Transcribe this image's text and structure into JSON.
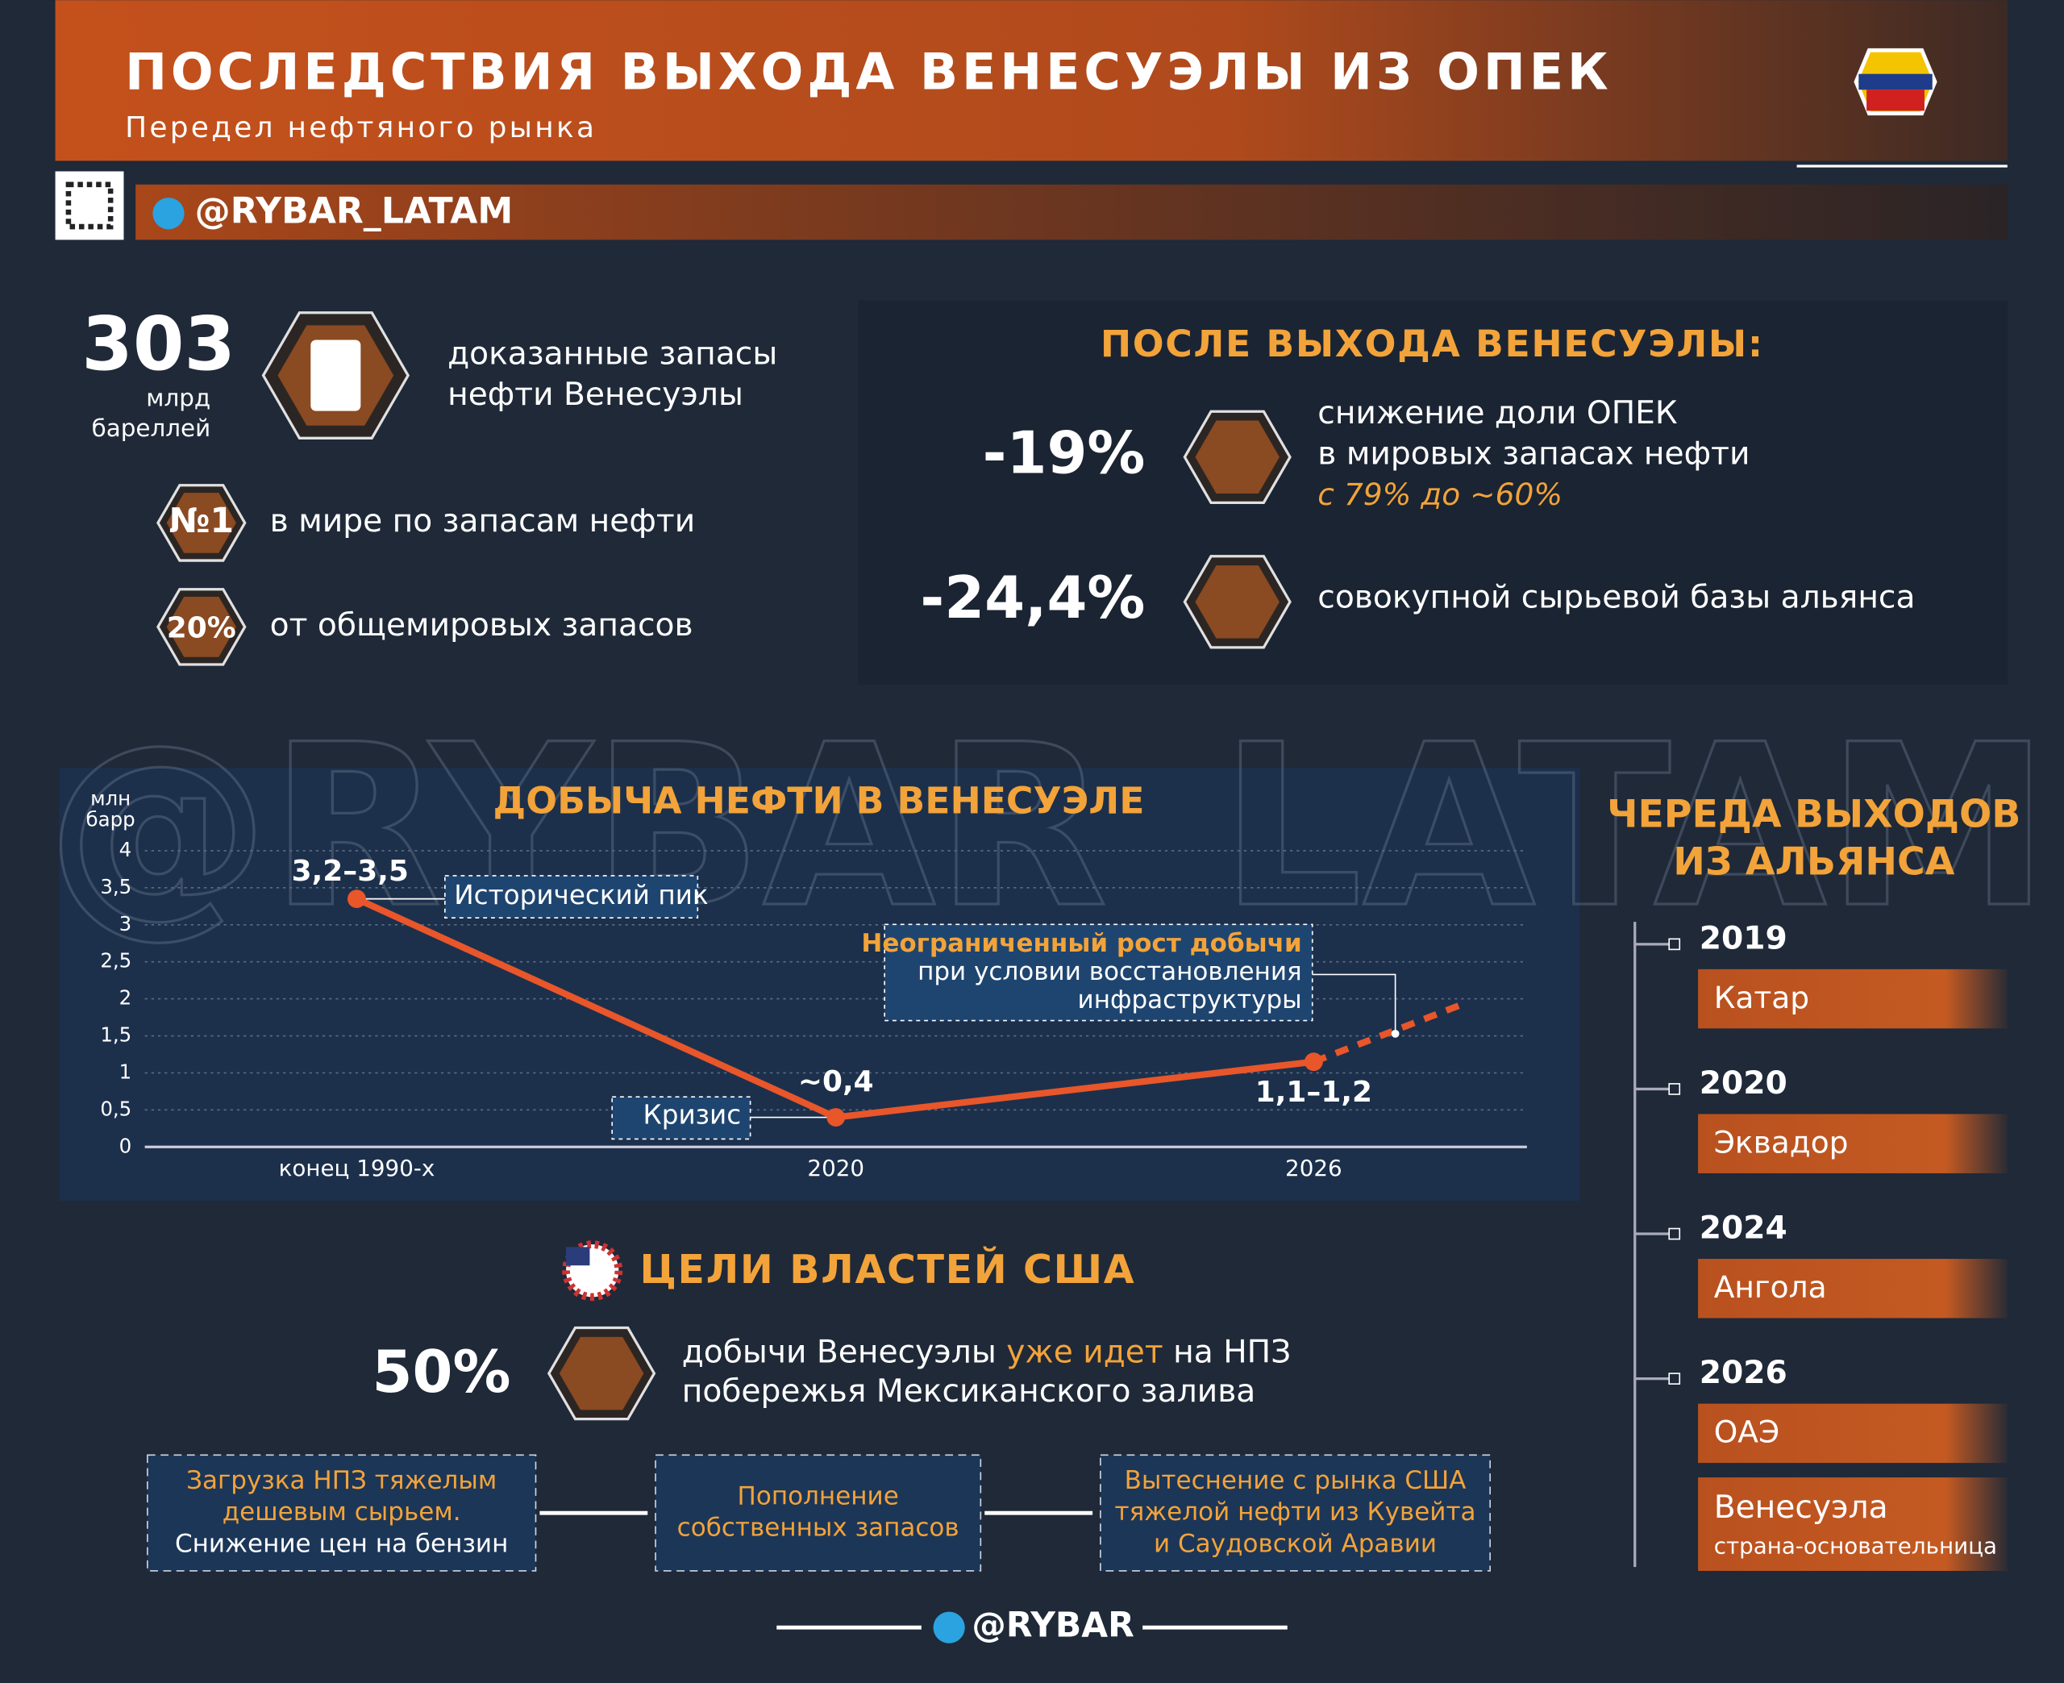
{
  "header": {
    "title": "ПОСЛЕДСТВИЯ ВЫХОДА ВЕНЕСУЭЛЫ ИЗ ОПЕК",
    "subtitle": "Передел нефтяного рынка",
    "handle": "@RYBAR_LATAM"
  },
  "reserves": {
    "number": "303",
    "unit_1": "млрд",
    "unit_2": "бареллей",
    "text_1": "доказанные запасы",
    "text_2": "нефти Венесуэлы",
    "rank_badge": "№1",
    "rank_text": "в мире по запасам нефти",
    "share_badge": "20%",
    "share_text": "от общемировых запасов"
  },
  "after_exit": {
    "title": "ПОСЛЕ ВЫХОДА ВЕНЕСУЭЛЫ:",
    "items": [
      {
        "value": "-19%",
        "lines": [
          "снижение доли ОПЕК",
          "в мировых запасах нефти"
        ],
        "note": "с 79% до ~60%"
      },
      {
        "value": "-24,4%",
        "lines": [
          "совокупной сырьевой базы альянса"
        ]
      }
    ]
  },
  "chart_data": {
    "type": "line",
    "title": "ДОБЫЧА НЕФТИ В ВЕНЕСУЭЛЕ",
    "ylabel": [
      "млн",
      "барр"
    ],
    "categories": [
      "конец 1990-х",
      "2020",
      "2026"
    ],
    "values": [
      3.35,
      0.4,
      1.15
    ],
    "value_labels": [
      "3,2–3,5",
      "~0,4",
      "1,1–1,2"
    ],
    "projection": 1.92,
    "color": "#e8562a",
    "ylim": [
      0,
      4
    ],
    "yticks": [
      0,
      {
        "value": 0.5,
        "label": "0,5"
      },
      1,
      {
        "value": 1.5,
        "label": "1,5"
      },
      2,
      {
        "value": 2.5,
        "label": "2,5"
      },
      3,
      {
        "value": 3.5,
        "label": "3,5"
      },
      4
    ],
    "grid": true,
    "annotations": {
      "peak": "Исторический пик",
      "crisis": "Кризис",
      "growth": [
        "Неограниченный рост добычи",
        "при условии восстановления",
        "инфраструктуры"
      ]
    }
  },
  "us_goals": {
    "title": "ЦЕЛИ ВЛАСТЕЙ США",
    "value": "50%",
    "line_1": [
      "добычи Венесуэлы ",
      "уже идет",
      " на НПЗ"
    ],
    "line_2": "побережья Мексиканского залива",
    "steps": [
      [
        "Загрузка НПЗ тяжелым",
        "дешевым сырьем.",
        "Снижение цен на бензин"
      ],
      [
        "Пополнение",
        "собственных запасов"
      ],
      [
        "Вытеснение с рынка США",
        "тяжелой нефти из Кувейта",
        "и Саудовской Аравии"
      ]
    ]
  },
  "exits": {
    "title": [
      "ЧЕРЕДА ВЫХОДОВ",
      "ИЗ АЛЬЯНСА"
    ],
    "items": [
      {
        "year": "2019",
        "country": "Катар"
      },
      {
        "year": "2020",
        "country": "Эквадор"
      },
      {
        "year": "2024",
        "country": "Ангола"
      },
      {
        "year": "2026",
        "country": "ОАЭ"
      }
    ],
    "founder": {
      "country": "Венесуэла",
      "note": "страна-основательница"
    }
  },
  "footer": "@RYBAR"
}
